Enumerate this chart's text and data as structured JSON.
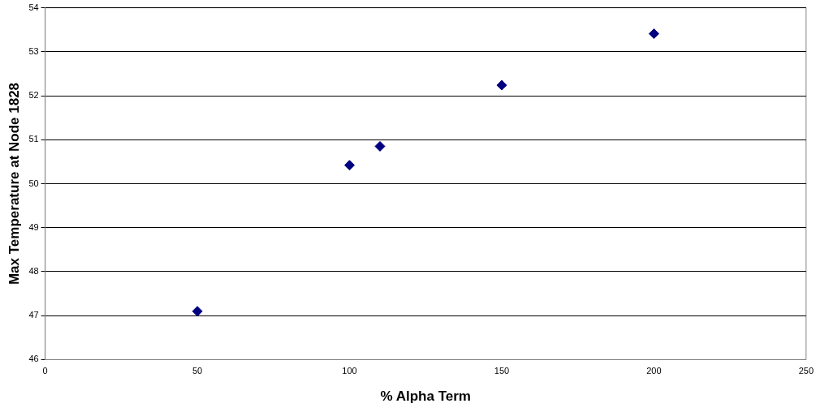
{
  "chart_data": {
    "type": "scatter",
    "xlabel": "% Alpha Term",
    "ylabel": "Max Temperature at Node 1828",
    "x": [
      50,
      100,
      110,
      150,
      200
    ],
    "series": [
      {
        "color": "#000080",
        "values": [
          47.1,
          50.42,
          50.85,
          52.24,
          53.41
        ]
      }
    ],
    "xlim": [
      0,
      250
    ],
    "xticks": [
      0,
      50,
      100,
      150,
      200,
      250
    ],
    "ylim": [
      46,
      54
    ],
    "yticks": [
      46,
      47,
      48,
      49,
      50,
      51,
      52,
      53,
      54
    ],
    "grid": "y",
    "legend": false,
    "marker": "diamond"
  }
}
